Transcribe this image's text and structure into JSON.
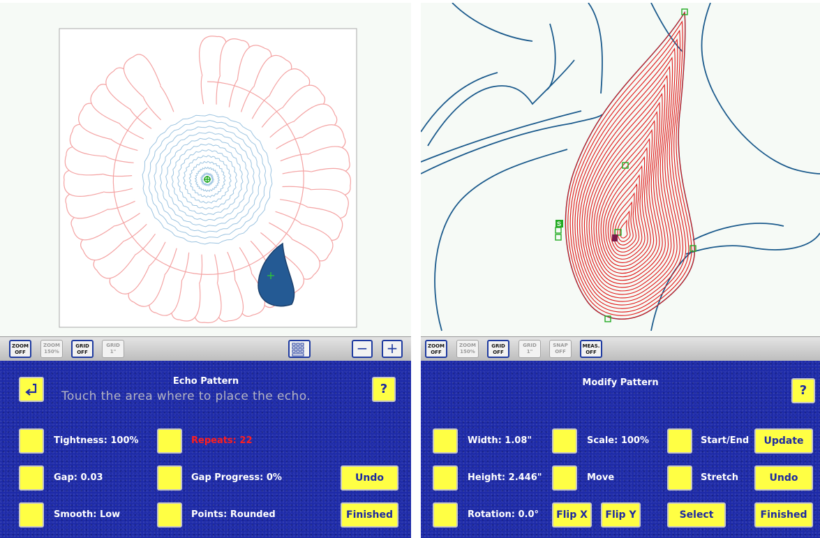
{
  "left": {
    "toolbar": {
      "zoom_off": [
        "ZOOM",
        "OFF"
      ],
      "zoom_150": [
        "ZOOM",
        "150%"
      ],
      "grid_off": [
        "GRID",
        "OFF"
      ],
      "grid_1": [
        "GRID",
        "1\""
      ],
      "zoom_out": "−",
      "zoom_in": "+"
    },
    "panel": {
      "title": "Echo Pattern",
      "instruction": "Touch the area where to place the echo.",
      "help": "?",
      "tightness": "Tightness: 100%",
      "repeats": "Repeats: 22",
      "gap": "Gap: 0.03",
      "gap_progress": "Gap Progress: 0%",
      "smooth": "Smooth: Low",
      "points": "Points: Rounded",
      "undo": "Undo",
      "finished": "Finished"
    }
  },
  "right": {
    "toolbar": {
      "zoom_off": [
        "ZOOM",
        "OFF"
      ],
      "zoom_150": [
        "ZOOM",
        "150%"
      ],
      "grid_off": [
        "GRID",
        "OFF"
      ],
      "grid_1": [
        "GRID",
        "1\""
      ],
      "snap_off": [
        "SNAP",
        "OFF"
      ],
      "meas_off": [
        "MEAS.",
        "OFF"
      ]
    },
    "panel": {
      "title": "Modify Pattern",
      "help": "?",
      "width": "Width: 1.08\"",
      "height": "Height: 2.446\"",
      "rotation": "Rotation: 0.0°",
      "scale": "Scale: 100%",
      "move": "Move",
      "flip_x": "Flip X",
      "flip_y": "Flip Y",
      "start_end": "Start/End",
      "stretch": "Stretch",
      "select": "Select",
      "update": "Update",
      "undo": "Undo",
      "finished": "Finished"
    }
  },
  "colors": {
    "panel_blue": "#1d2aa8",
    "button_yellow": "#ffff44",
    "feather_pink": "#f4a3a3",
    "echo_blue": "#9bc3e0",
    "outline_blue": "#1b5a8c",
    "echo_red": "#e01616",
    "handle_green": "#22aa22"
  }
}
